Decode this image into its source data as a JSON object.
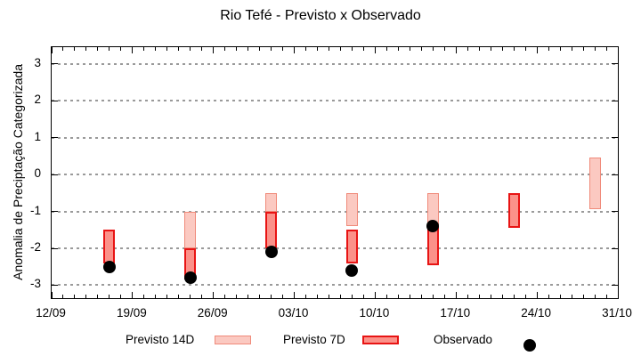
{
  "chart": {
    "title": "Rio Tefé - Previsto x Observado",
    "ylabel": "Anomalia de Preciptação Categorizada"
  },
  "legend": {
    "previsto14_label": "Previsto 14D",
    "previsto7_label": "Previsto 7D",
    "observado_label": "Observado"
  },
  "colors": {
    "p14_fill": "#fbc9c1",
    "p14_border": "#f08a7a",
    "p7_fill": "#fb9189",
    "p7_border": "#e81414",
    "observed": "#000000",
    "grid": "#9a9a9a",
    "axis": "#000000"
  },
  "chart_data": {
    "type": "bar",
    "subtype": "range-bars-with-scatter",
    "title": "Rio Tefé - Previsto x Observado",
    "xlabel": "",
    "ylabel": "Anomalia de Preciptação Categorizada",
    "x_tick_labels": [
      "12/09",
      "19/09",
      "26/09",
      "03/10",
      "10/10",
      "17/10",
      "24/10",
      "31/10"
    ],
    "x_tick_days": [
      0,
      7,
      14,
      21,
      28,
      35,
      42,
      49
    ],
    "x_minor_step_days": 1,
    "xlim_days": [
      0,
      49
    ],
    "y_ticks": [
      -3,
      -2,
      -1,
      0,
      1,
      2,
      3
    ],
    "ylim": [
      -3.35,
      3.45
    ],
    "grid": "horizontal dotted lines at integer y values",
    "legend_position": "bottom",
    "series": [
      {
        "name": "Previsto 14D",
        "id": "previsto14",
        "type": "range-bar",
        "fill": "#fbc9c1",
        "border": "#f08a7a",
        "border_width": 1.5,
        "ranges": [
          {
            "date": "24/09",
            "day": 12,
            "high": -1.0,
            "low": -2.0
          },
          {
            "date": "01/10",
            "day": 19,
            "high": -0.5,
            "low": -1.0
          },
          {
            "date": "08/10",
            "day": 26,
            "high": -0.5,
            "low": -1.4
          },
          {
            "date": "15/10",
            "day": 33,
            "high": -0.5,
            "low": -1.4
          },
          {
            "date": "29/10",
            "day": 47,
            "high": 0.45,
            "low": -0.95
          }
        ]
      },
      {
        "name": "Previsto 7D",
        "id": "previsto7",
        "type": "range-bar",
        "fill": "#fb9189",
        "border": "#e81414",
        "border_width": 2,
        "ranges": [
          {
            "date": "17/09",
            "day": 5,
            "high": -1.5,
            "low": -2.4
          },
          {
            "date": "24/09",
            "day": 12,
            "high": -2.0,
            "low": -2.85
          },
          {
            "date": "01/10",
            "day": 19,
            "high": -1.0,
            "low": -2.0
          },
          {
            "date": "08/10",
            "day": 26,
            "high": -1.5,
            "low": -2.4
          },
          {
            "date": "15/10",
            "day": 33,
            "high": -1.4,
            "low": -2.45
          },
          {
            "date": "22/10",
            "day": 40,
            "high": -0.5,
            "low": -1.45
          }
        ]
      },
      {
        "name": "Observado",
        "id": "observado",
        "type": "scatter",
        "marker": "filled-circle",
        "color": "#000000",
        "points": [
          {
            "date": "17/09",
            "day": 5,
            "y": -2.5
          },
          {
            "date": "24/09",
            "day": 12,
            "y": -2.8
          },
          {
            "date": "01/10",
            "day": 19,
            "y": -2.1
          },
          {
            "date": "08/10",
            "day": 26,
            "y": -2.6
          },
          {
            "date": "15/10",
            "day": 33,
            "y": -1.4
          }
        ]
      }
    ]
  }
}
